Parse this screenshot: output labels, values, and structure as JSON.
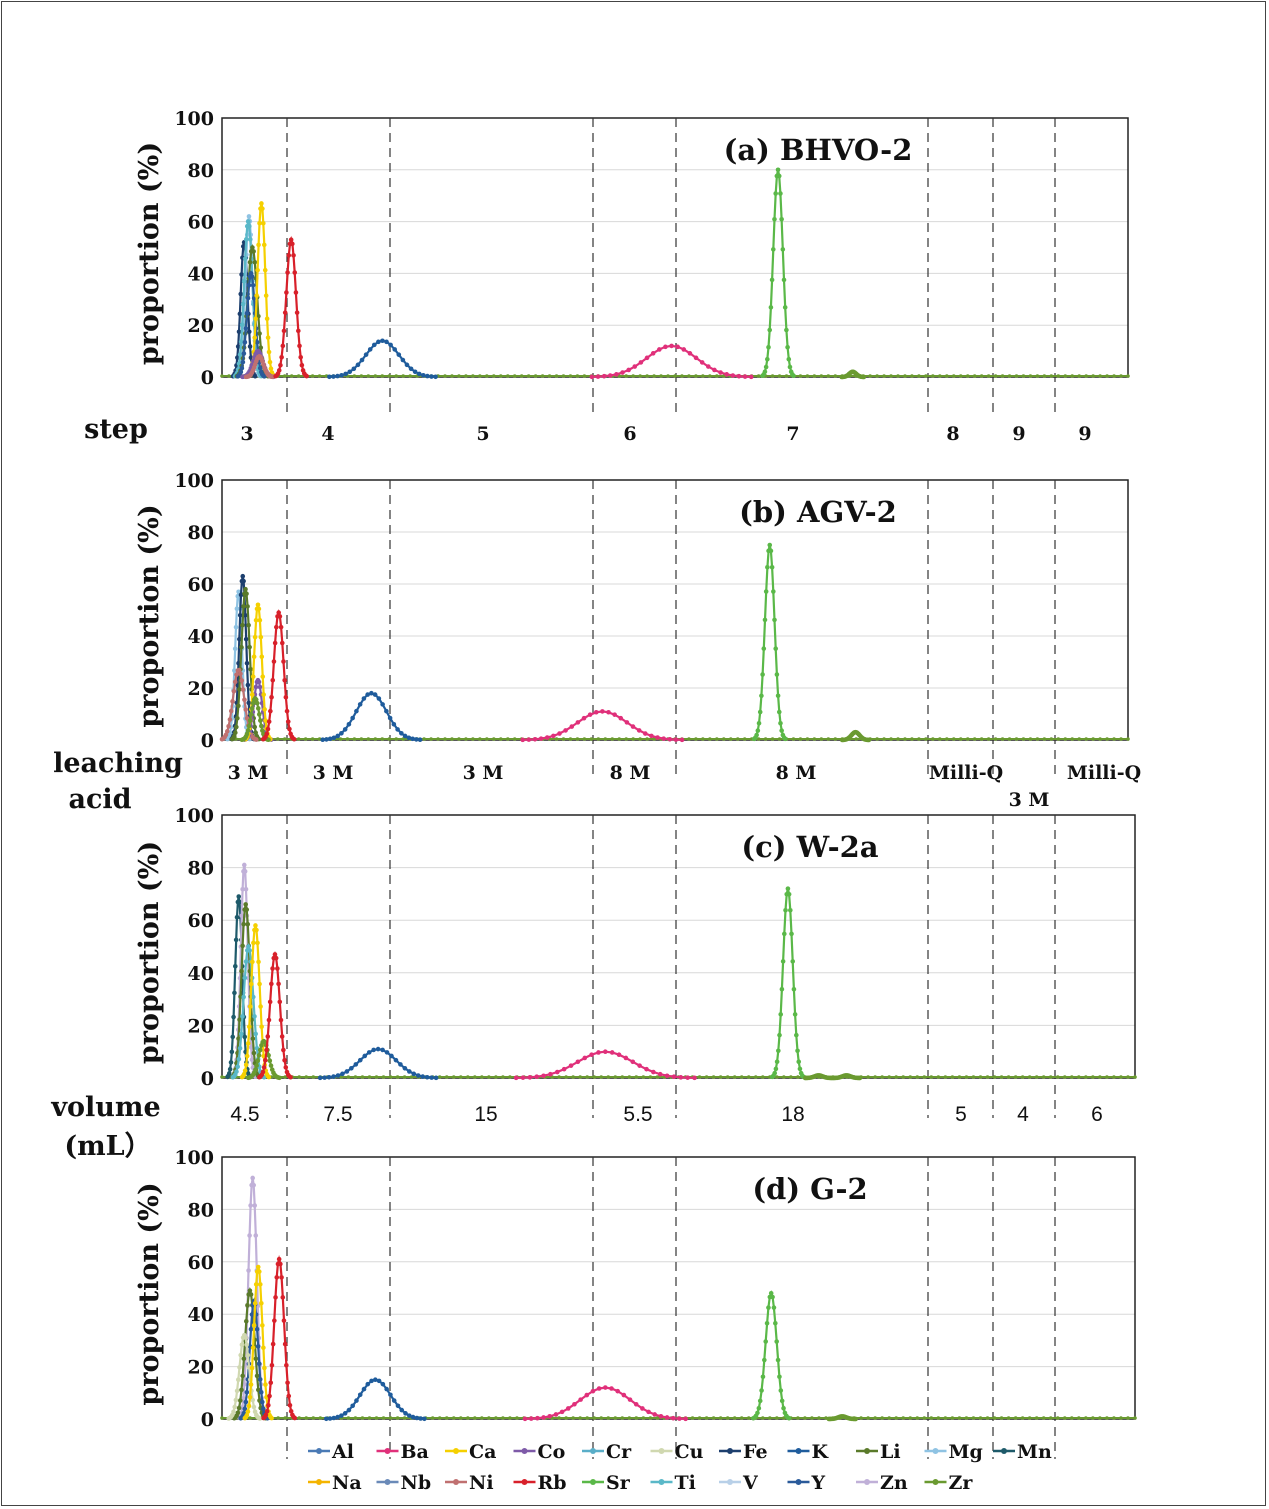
{
  "chart_data": [
    {
      "type": "line",
      "title": "(a) BHVO-2",
      "ylabel": "proportion (%)",
      "ylim": [
        0,
        100
      ],
      "yticks": [
        "0",
        "20",
        "40",
        "60",
        "80",
        "100"
      ],
      "peaks": [
        {
          "element": "Fe",
          "center": 1.6,
          "width": 0.25,
          "height": 52
        },
        {
          "element": "Mg",
          "center": 1.95,
          "width": 0.25,
          "height": 62
        },
        {
          "element": "Ti",
          "center": 1.9,
          "width": 0.3,
          "height": 60
        },
        {
          "element": "Li",
          "center": 2.2,
          "width": 0.35,
          "height": 50
        },
        {
          "element": "Y",
          "center": 2.1,
          "width": 0.3,
          "height": 40
        },
        {
          "element": "Ca",
          "center": 2.85,
          "width": 0.28,
          "height": 67
        },
        {
          "element": "Co",
          "center": 2.6,
          "width": 0.35,
          "height": 10
        },
        {
          "element": "Ni",
          "center": 2.7,
          "width": 0.3,
          "height": 8
        },
        {
          "element": "Rb",
          "center": 5.0,
          "width": 0.35,
          "height": 53
        },
        {
          "element": "K",
          "center": 11.6,
          "width": 1.2,
          "height": 14
        },
        {
          "element": "Ba",
          "center": 32.5,
          "width": 1.8,
          "height": 12
        },
        {
          "element": "Sr",
          "center": 40.2,
          "width": 0.35,
          "height": 80
        },
        {
          "element": "Zr",
          "center": 45.6,
          "width": 0.25,
          "height": 2
        }
      ]
    },
    {
      "type": "line",
      "title": "(b) AGV-2",
      "ylabel": "proportion (%)",
      "ylim": [
        0,
        100
      ],
      "yticks": [
        "0",
        "20",
        "40",
        "60",
        "80",
        "100"
      ],
      "peaks": [
        {
          "element": "Mg",
          "center": 1.2,
          "width": 0.25,
          "height": 57
        },
        {
          "element": "Fe",
          "center": 1.5,
          "width": 0.25,
          "height": 63
        },
        {
          "element": "Li",
          "center": 1.7,
          "width": 0.3,
          "height": 58
        },
        {
          "element": "Ni",
          "center": 1.2,
          "width": 0.4,
          "height": 27
        },
        {
          "element": "Co",
          "center": 2.6,
          "width": 0.3,
          "height": 23
        },
        {
          "element": "Ca",
          "center": 2.6,
          "width": 0.28,
          "height": 52
        },
        {
          "element": "Zr",
          "center": 2.4,
          "width": 0.3,
          "height": 16
        },
        {
          "element": "Rb",
          "center": 4.1,
          "width": 0.35,
          "height": 49
        },
        {
          "element": "K",
          "center": 10.8,
          "width": 1.1,
          "height": 18
        },
        {
          "element": "Ba",
          "center": 27.5,
          "width": 1.8,
          "height": 11
        },
        {
          "element": "Sr",
          "center": 39.6,
          "width": 0.35,
          "height": 75
        },
        {
          "element": "Zr",
          "center": 45.8,
          "width": 0.3,
          "height": 3
        }
      ]
    },
    {
      "type": "line",
      "title": "(c) W-2a",
      "ylabel": "proportion (%)",
      "ylim": [
        0,
        100
      ],
      "yticks": [
        "0",
        "20",
        "40",
        "60",
        "80",
        "100"
      ],
      "peaks": [
        {
          "element": "Mn",
          "center": 1.2,
          "width": 0.25,
          "height": 69
        },
        {
          "element": "Zn",
          "center": 1.6,
          "width": 0.25,
          "height": 81
        },
        {
          "element": "Li",
          "center": 1.7,
          "width": 0.3,
          "height": 66
        },
        {
          "element": "Ti",
          "center": 1.9,
          "width": 0.35,
          "height": 50
        },
        {
          "element": "Ca",
          "center": 2.4,
          "width": 0.3,
          "height": 58
        },
        {
          "element": "Zr",
          "center": 3.0,
          "width": 0.35,
          "height": 14
        },
        {
          "element": "Rb",
          "center": 3.8,
          "width": 0.35,
          "height": 47
        },
        {
          "element": "K",
          "center": 11.2,
          "width": 1.3,
          "height": 11
        },
        {
          "element": "Ba",
          "center": 27.5,
          "width": 2.0,
          "height": 10
        },
        {
          "element": "Sr",
          "center": 40.6,
          "width": 0.35,
          "height": 72
        },
        {
          "element": "Zr",
          "center": 42.8,
          "width": 0.3,
          "height": 1
        },
        {
          "element": "Zr",
          "center": 44.8,
          "width": 0.3,
          "height": 1
        }
      ]
    },
    {
      "type": "line",
      "title": "(d) G-2",
      "ylabel": "proportion (%)",
      "ylim": [
        0,
        100
      ],
      "yticks": [
        "0",
        "20",
        "40",
        "60",
        "80",
        "100"
      ],
      "peaks": [
        {
          "element": "Zn",
          "center": 2.2,
          "width": 0.3,
          "height": 92
        },
        {
          "element": "Li",
          "center": 2.0,
          "width": 0.35,
          "height": 49
        },
        {
          "element": "Y",
          "center": 2.3,
          "width": 0.3,
          "height": 45
        },
        {
          "element": "Cu",
          "center": 1.6,
          "width": 0.35,
          "height": 32
        },
        {
          "element": "Ca",
          "center": 2.6,
          "width": 0.3,
          "height": 58
        },
        {
          "element": "Rb",
          "center": 4.1,
          "width": 0.35,
          "height": 61
        },
        {
          "element": "K",
          "center": 11.0,
          "width": 1.1,
          "height": 15
        },
        {
          "element": "Ba",
          "center": 27.5,
          "width": 1.8,
          "height": 12
        },
        {
          "element": "Sr",
          "center": 39.4,
          "width": 0.4,
          "height": 48
        },
        {
          "element": "Zr",
          "center": 44.5,
          "width": 0.3,
          "height": 1
        }
      ]
    }
  ],
  "separators_x": [
    4.5,
    12,
    27,
    32.5,
    50.5,
    55.5,
    59.5
  ],
  "x_range": [
    0,
    65.5
  ],
  "row_labels": {
    "step": "step",
    "leaching_acid": [
      "leaching",
      "acid"
    ],
    "volume": [
      "volume",
      "(mL）"
    ]
  },
  "steps": [
    "3",
    "4",
    "5",
    "6",
    "7",
    "8",
    "9",
    "9"
  ],
  "acids": [
    "3 M",
    "3 M",
    "3 M",
    "8 M",
    "8 M",
    "Milli-Q",
    "3 M",
    "Milli-Q"
  ],
  "volumes": [
    "4.5",
    "7.5",
    "15",
    "5.5",
    "18",
    "5",
    "4",
    "6"
  ],
  "legend": [
    {
      "name": "Al",
      "color": "#4a7ab5"
    },
    {
      "name": "Ba",
      "color": "#e0307a"
    },
    {
      "name": "Ca",
      "color": "#f5d000"
    },
    {
      "name": "Co",
      "color": "#7e5aa8"
    },
    {
      "name": "Cr",
      "color": "#5aaec8"
    },
    {
      "name": "Cu",
      "color": "#d0d8b0"
    },
    {
      "name": "Fe",
      "color": "#1d3f6e"
    },
    {
      "name": "K",
      "color": "#1f5c9c"
    },
    {
      "name": "Li",
      "color": "#5a7a2a"
    },
    {
      "name": "Mg",
      "color": "#8fc3e3"
    },
    {
      "name": "Mn",
      "color": "#1e5a6a"
    },
    {
      "name": "Na",
      "color": "#f4b400"
    },
    {
      "name": "Nb",
      "color": "#6a8ab8"
    },
    {
      "name": "Ni",
      "color": "#c07070"
    },
    {
      "name": "Rb",
      "color": "#d8202a"
    },
    {
      "name": "Sr",
      "color": "#5ab848"
    },
    {
      "name": "Ti",
      "color": "#5ab8c8"
    },
    {
      "name": "V",
      "color": "#b8d0e8"
    },
    {
      "name": "Y",
      "color": "#2a5a9a"
    },
    {
      "name": "Zn",
      "color": "#c0b0d8"
    },
    {
      "name": "Zr",
      "color": "#6a9a30"
    }
  ]
}
